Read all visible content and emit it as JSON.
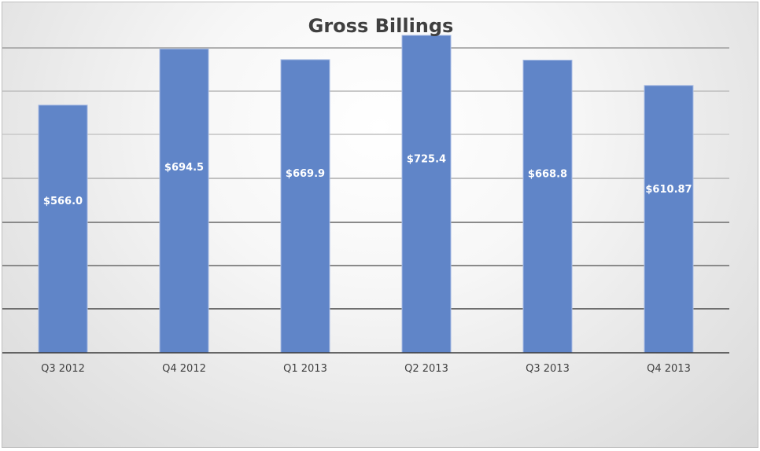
{
  "chart_data": {
    "type": "bar",
    "title": "Gross Billings",
    "xlabel": "",
    "ylabel": "",
    "categories": [
      "Q3 2012",
      "Q4 2012",
      "Q1 2013",
      "Q2 2013",
      "Q3 2013",
      "Q4 2013"
    ],
    "values": [
      566.0,
      694.5,
      669.9,
      725.4,
      668.8,
      610.87
    ],
    "data_labels": [
      "$566.0",
      "$694.5",
      "$669.9",
      "$725.4",
      "$668.8",
      "$610.87"
    ],
    "ylim": [
      0,
      725.4
    ],
    "grid": true,
    "legend": "none",
    "bar_color": "#6085c8",
    "bar_edge_color": "#a9bce3",
    "gridline_colors": [
      "#b0b0b0",
      "#c8c8c8",
      "#d0d0d0",
      "#c0c0c0",
      "#8a8a8a",
      "#8a8a8a",
      "#6f6f6f",
      "#4a4a4a"
    ]
  }
}
